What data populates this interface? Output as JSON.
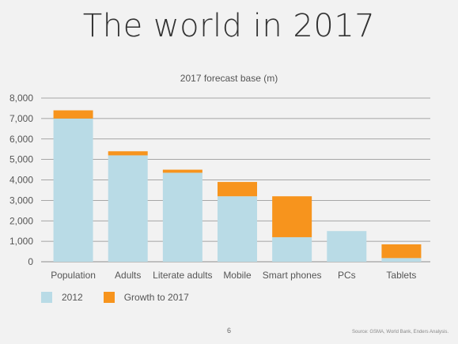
{
  "slide": {
    "title": "The world in 2017",
    "page_number": "6",
    "source": "Source: GSMA, World Bank, Enders Analysis."
  },
  "colors": {
    "base": "#b9dbe6",
    "growth": "#f7941d",
    "grid": "#8c8c8c",
    "text": "#555555"
  },
  "chart_data": {
    "type": "bar",
    "stacked": true,
    "title": "2017 forecast base (m)",
    "xlabel": "",
    "ylabel": "",
    "ylim": [
      0,
      8000
    ],
    "yticks": [
      "0",
      "1,000",
      "2,000",
      "3,000",
      "4,000",
      "5,000",
      "6,000",
      "7,000",
      "8,000"
    ],
    "grid": true,
    "legend_position": "bottom-left",
    "categories": [
      "Population",
      "Adults",
      "Literate adults",
      "Mobile",
      "Smart phones",
      "PCs",
      "Tablets"
    ],
    "series": [
      {
        "name": "2012",
        "color_key": "base",
        "values": [
          7000,
          5200,
          4350,
          3200,
          1200,
          1500,
          180
        ]
      },
      {
        "name": "Growth to 2017",
        "color_key": "growth",
        "values": [
          400,
          200,
          150,
          700,
          2000,
          0,
          670
        ]
      }
    ]
  }
}
